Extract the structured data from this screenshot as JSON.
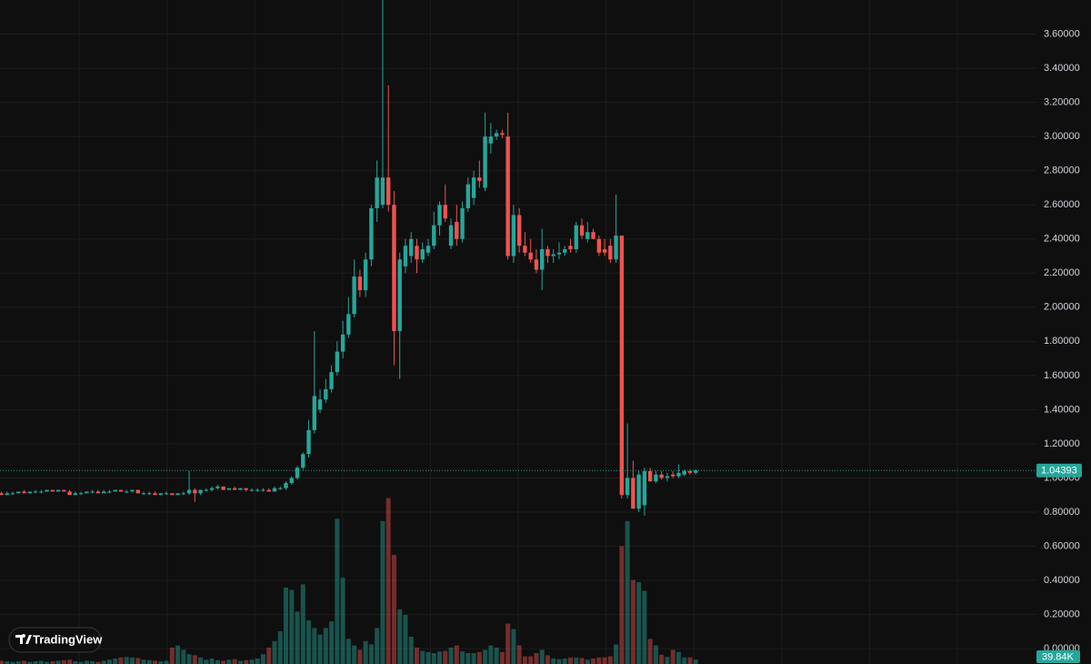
{
  "chart_data": {
    "type": "candlestick",
    "open": [
      0.91,
      0.9,
      0.91,
      0.91,
      0.92,
      0.91,
      0.92,
      0.92,
      0.92,
      0.93,
      0.92,
      0.93,
      0.92,
      0.9,
      0.91,
      0.91,
      0.92,
      0.92,
      0.91,
      0.92,
      0.92,
      0.93,
      0.92,
      0.92,
      0.93,
      0.91,
      0.91,
      0.91,
      0.9,
      0.91,
      0.91,
      0.9,
      0.91,
      0.91,
      0.93,
      0.91,
      0.93,
      0.93,
      0.94,
      0.95,
      0.93,
      0.94,
      0.93,
      0.94,
      0.93,
      0.93,
      0.93,
      0.93,
      0.92,
      0.94,
      0.94,
      0.97,
      1.0,
      1.06,
      1.14,
      1.28,
      1.4,
      1.46,
      1.52,
      1.62,
      1.74,
      1.84,
      1.96,
      2.18,
      2.1,
      2.28,
      2.58,
      2.6,
      2.76,
      2.6,
      1.86,
      2.24,
      2.3,
      2.36,
      2.28,
      2.32,
      2.36,
      2.48,
      2.6,
      2.36,
      2.5,
      2.4,
      2.58,
      2.64,
      2.76,
      2.7,
      2.96,
      3.0,
      3.02,
      3.0,
      2.3,
      2.54,
      2.36,
      2.32,
      2.28,
      2.22,
      2.34,
      2.3,
      2.31,
      2.32,
      2.36,
      2.34,
      2.48,
      2.4,
      2.44,
      2.4,
      2.34,
      2.36,
      2.28,
      2.42,
      0.9,
      1.0,
      0.82,
      0.84,
      1.04,
      0.98,
      1.02,
      1.0,
      1.02,
      1.01,
      1.02,
      1.04,
      1.03
    ],
    "high": [
      0.92,
      0.92,
      0.92,
      0.92,
      0.93,
      0.92,
      0.93,
      0.93,
      0.93,
      0.93,
      0.93,
      0.93,
      0.93,
      0.92,
      0.92,
      0.92,
      0.93,
      0.93,
      0.93,
      0.93,
      0.93,
      0.93,
      0.93,
      0.93,
      0.93,
      0.92,
      0.92,
      0.92,
      0.91,
      0.92,
      0.91,
      0.91,
      0.92,
      1.04,
      0.94,
      0.93,
      0.94,
      0.95,
      0.96,
      0.95,
      0.94,
      0.95,
      0.94,
      0.94,
      0.94,
      0.94,
      0.94,
      0.94,
      0.95,
      0.95,
      0.98,
      1.01,
      1.07,
      1.15,
      1.34,
      1.86,
      1.52,
      1.58,
      1.66,
      1.8,
      1.92,
      2.06,
      2.28,
      2.22,
      2.32,
      2.6,
      2.86,
      3.8,
      3.3,
      2.68,
      2.32,
      2.4,
      2.44,
      2.4,
      2.38,
      2.4,
      2.56,
      2.62,
      2.72,
      2.52,
      2.6,
      2.62,
      2.76,
      2.8,
      2.86,
      3.14,
      3.08,
      3.04,
      3.04,
      3.14,
      2.6,
      2.58,
      2.44,
      2.4,
      2.34,
      2.46,
      2.36,
      2.34,
      2.38,
      2.36,
      2.4,
      2.5,
      2.52,
      2.5,
      2.46,
      2.42,
      2.4,
      2.4,
      2.66,
      2.42,
      1.32,
      1.1,
      1.04,
      1.06,
      1.06,
      1.04,
      1.04,
      1.03,
      1.04,
      1.08,
      1.05,
      1.05,
      1.05
    ],
    "low": [
      0.9,
      0.9,
      0.9,
      0.91,
      0.91,
      0.91,
      0.91,
      0.91,
      0.92,
      0.92,
      0.92,
      0.92,
      0.9,
      0.9,
      0.9,
      0.91,
      0.91,
      0.91,
      0.91,
      0.91,
      0.92,
      0.92,
      0.91,
      0.92,
      0.91,
      0.9,
      0.9,
      0.9,
      0.9,
      0.9,
      0.9,
      0.9,
      0.9,
      0.9,
      0.86,
      0.9,
      0.92,
      0.92,
      0.93,
      0.93,
      0.93,
      0.93,
      0.93,
      0.92,
      0.92,
      0.92,
      0.92,
      0.92,
      0.92,
      0.93,
      0.93,
      0.96,
      0.99,
      1.05,
      1.12,
      1.26,
      1.38,
      1.44,
      1.5,
      1.6,
      1.7,
      1.82,
      1.94,
      2.06,
      2.06,
      2.24,
      2.5,
      2.58,
      2.56,
      1.66,
      1.58,
      2.2,
      2.26,
      2.2,
      2.26,
      2.3,
      2.34,
      2.42,
      2.5,
      2.34,
      2.36,
      2.38,
      2.56,
      2.6,
      2.7,
      2.68,
      2.9,
      2.98,
      2.99,
      2.28,
      2.26,
      2.32,
      2.3,
      2.26,
      2.2,
      2.1,
      2.26,
      2.26,
      2.28,
      2.3,
      2.32,
      2.32,
      2.4,
      2.38,
      2.4,
      2.3,
      2.3,
      2.26,
      2.26,
      0.88,
      0.88,
      0.82,
      0.8,
      0.78,
      0.98,
      0.97,
      0.99,
      0.98,
      1.0,
      1.0,
      1.01,
      1.02,
      1.02
    ],
    "close": [
      0.9,
      0.91,
      0.91,
      0.92,
      0.91,
      0.92,
      0.92,
      0.92,
      0.93,
      0.92,
      0.93,
      0.92,
      0.9,
      0.91,
      0.91,
      0.92,
      0.92,
      0.91,
      0.92,
      0.92,
      0.93,
      0.92,
      0.92,
      0.93,
      0.91,
      0.91,
      0.91,
      0.9,
      0.91,
      0.91,
      0.9,
      0.91,
      0.91,
      0.93,
      0.91,
      0.93,
      0.93,
      0.94,
      0.95,
      0.93,
      0.94,
      0.93,
      0.94,
      0.93,
      0.93,
      0.93,
      0.93,
      0.92,
      0.94,
      0.94,
      0.97,
      1.0,
      1.06,
      1.14,
      1.28,
      1.48,
      1.46,
      1.52,
      1.62,
      1.74,
      1.84,
      1.96,
      2.18,
      2.1,
      2.28,
      2.58,
      2.76,
      2.76,
      2.6,
      1.86,
      2.28,
      2.36,
      2.4,
      2.28,
      2.34,
      2.36,
      2.48,
      2.6,
      2.52,
      2.48,
      2.4,
      2.58,
      2.72,
      2.76,
      2.74,
      3.0,
      3.0,
      3.02,
      3.01,
      2.3,
      2.54,
      2.36,
      2.32,
      2.28,
      2.22,
      2.34,
      2.3,
      2.31,
      2.32,
      2.34,
      2.34,
      2.48,
      2.42,
      2.44,
      2.4,
      2.32,
      2.32,
      2.28,
      2.42,
      0.9,
      1.0,
      0.82,
      1.02,
      1.04,
      0.98,
      1.02,
      1.0,
      1.01,
      1.01,
      1.03,
      1.04,
      1.03,
      1.044
    ],
    "volume": [
      30,
      25,
      20,
      25,
      30,
      20,
      25,
      30,
      20,
      25,
      30,
      35,
      40,
      25,
      20,
      30,
      25,
      20,
      30,
      40,
      50,
      60,
      65,
      60,
      55,
      40,
      35,
      30,
      25,
      30,
      150,
      170,
      130,
      90,
      80,
      60,
      40,
      50,
      35,
      30,
      40,
      45,
      30,
      35,
      40,
      50,
      90,
      150,
      210,
      300,
      700,
      680,
      480,
      730,
      400,
      330,
      270,
      330,
      390,
      1330,
      790,
      230,
      170,
      130,
      210,
      180,
      330,
      1310,
      1520,
      1000,
      500,
      450,
      250,
      150,
      120,
      110,
      100,
      115,
      120,
      150,
      170,
      115,
      100,
      100,
      110,
      130,
      170,
      150,
      110,
      370,
      320,
      170,
      70,
      70,
      100,
      130,
      80,
      50,
      45,
      50,
      60,
      60,
      55,
      40,
      50,
      60,
      60,
      70,
      180,
      1080,
      1310,
      770,
      750,
      670,
      230,
      170,
      85,
      65,
      130,
      110,
      60,
      60,
      39.84
    ],
    "last_volume": {
      "value": 39.84,
      "label": "39.84K"
    },
    "last_price": 1.04393,
    "ylim": [
      -0.09,
      3.8
    ],
    "yticks": [
      {
        "value": 0,
        "label": "0.00000"
      },
      {
        "value": 0.2,
        "label": "0.20000"
      },
      {
        "value": 0.4,
        "label": "0.40000"
      },
      {
        "value": 0.6,
        "label": "0.60000"
      },
      {
        "value": 0.8,
        "label": "0.80000"
      },
      {
        "value": 1,
        "label": "1.00000"
      },
      {
        "value": 1.2,
        "label": "1.20000"
      },
      {
        "value": 1.4,
        "label": "1.40000"
      },
      {
        "value": 1.6,
        "label": "1.60000"
      },
      {
        "value": 1.8,
        "label": "1.80000"
      },
      {
        "value": 2,
        "label": "2.00000"
      },
      {
        "value": 2.2,
        "label": "2.20000"
      },
      {
        "value": 2.4,
        "label": "2.40000"
      },
      {
        "value": 2.6,
        "label": "2.60000"
      },
      {
        "value": 2.8,
        "label": "2.80000"
      },
      {
        "value": 3,
        "label": "3.00000"
      },
      {
        "value": 3.2,
        "label": "3.20000"
      },
      {
        "value": 3.4,
        "label": "3.40000"
      },
      {
        "value": 3.6,
        "label": "3.60000"
      }
    ],
    "volume_ylim": [
      0,
      1500
    ],
    "grid": true,
    "colors": {
      "up": "#26a69a",
      "down": "#ef5350"
    },
    "watermark": "TradingView"
  }
}
